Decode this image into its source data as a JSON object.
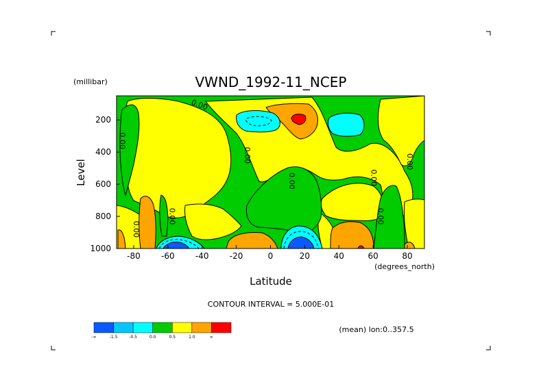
{
  "chart_data": {
    "type": "contour",
    "title": "VWND_1992-11_NCEP",
    "ylabel": "Level",
    "yunit": "(millibar)",
    "xlabel": "Latitude",
    "xunit": "(degrees_north)",
    "xlim": [
      -90,
      90
    ],
    "ylim": [
      1000,
      50
    ],
    "x_ticks": [
      -80,
      -60,
      -40,
      -20,
      0,
      20,
      40,
      60,
      80
    ],
    "y_ticks": [
      200,
      400,
      600,
      800,
      1000
    ],
    "contour_interval_text": "CONTOUR INTERVAL = 5.000E-01",
    "mean_text": "(mean) lon:0..357.5",
    "contour_labels": [
      {
        "text": "0.00",
        "lat": -42,
        "level": 120
      },
      {
        "text": "0.00",
        "lat": -88,
        "level": 330
      },
      {
        "text": "0.00",
        "lat": -15,
        "level": 420
      },
      {
        "text": "0.00",
        "lat": 11,
        "level": 580
      },
      {
        "text": "0.00",
        "lat": 59,
        "level": 560
      },
      {
        "text": "0.00",
        "lat": 80,
        "level": 460
      },
      {
        "text": "0.00",
        "lat": -59,
        "level": 800
      },
      {
        "text": "0.00",
        "lat": -80,
        "level": 880
      },
      {
        "text": "0.00",
        "lat": 63,
        "level": 800
      }
    ],
    "colorbar": {
      "colors": [
        "#0a5aff",
        "#00c8ff",
        "#00ffff",
        "#00cc00",
        "#ffff00",
        "#ffa500",
        "#ff0000"
      ],
      "labels": [
        "-∞",
        "-1.5",
        "-0.5",
        "0.0",
        "0.5",
        "1.0",
        "∞"
      ]
    },
    "regions": [
      {
        "value": "-1.5",
        "color": "#00ffff",
        "center": [
          -12,
          175
        ]
      },
      {
        "value": "-1.5",
        "color": "#00ffff",
        "center": [
          42,
          185
        ]
      },
      {
        "value": "-2.0",
        "color": "#0a5aff",
        "center": [
          -57,
          990
        ]
      },
      {
        "value": "-2.0",
        "color": "#0a5aff",
        "center": [
          17,
          960
        ]
      },
      {
        "value": "1.5",
        "color": "#ff0000",
        "center": [
          16,
          165
        ]
      },
      {
        "value": "1.5",
        "color": "#ff0000",
        "center": [
          53,
          985
        ]
      }
    ]
  }
}
